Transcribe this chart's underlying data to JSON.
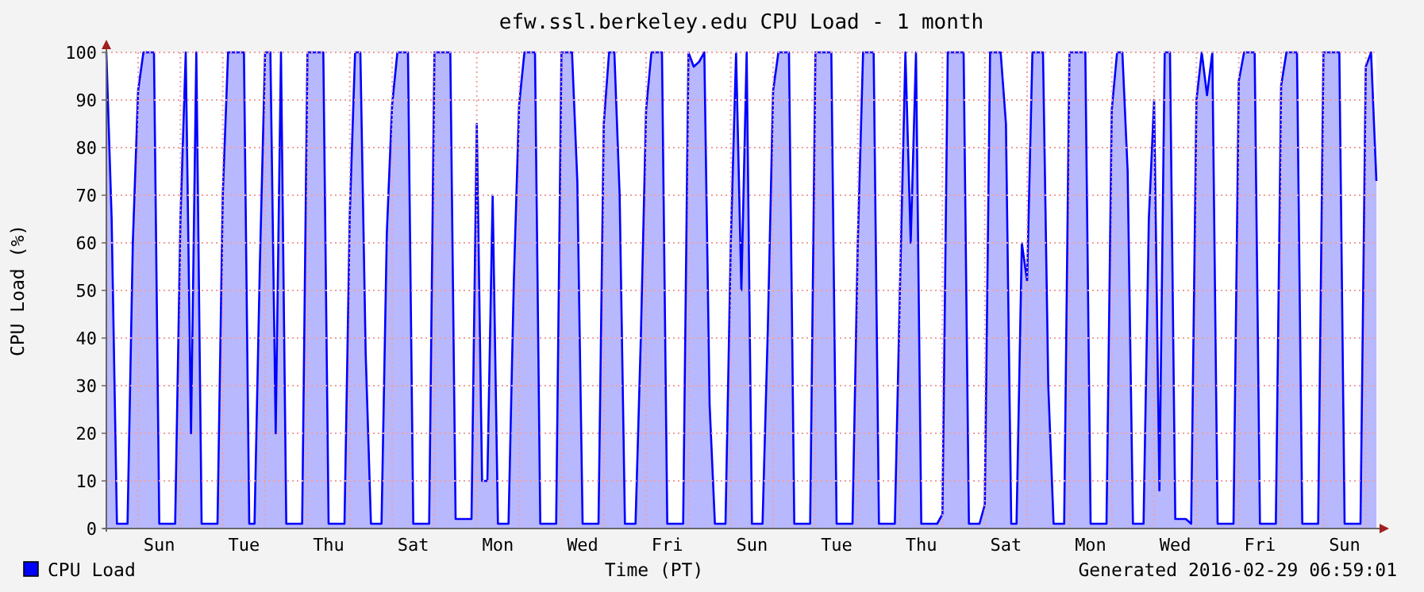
{
  "chart_data": {
    "type": "area",
    "title": "efw.ssl.berkeley.edu CPU Load - 1 month",
    "xlabel": "Time (PT)",
    "ylabel": "CPU Load (%)",
    "annotations": [
      "Generated 2016-02-29 06:59:01"
    ],
    "legend": "bottom left",
    "grid": true,
    "categories": [
      null,
      null,
      null,
      null,
      null,
      null,
      null,
      null,
      null,
      null,
      "Sun",
      null,
      null,
      null,
      null,
      null,
      null,
      null,
      null,
      null,
      null,
      null,
      null,
      null,
      null,
      null,
      "Tue",
      null,
      null,
      null,
      null,
      null,
      null,
      null,
      null,
      null,
      null,
      null,
      null,
      null,
      null,
      null,
      "Thu",
      null,
      null,
      null,
      null,
      null,
      null,
      null,
      null,
      null,
      null,
      null,
      null,
      null,
      null,
      null,
      "Sat",
      null,
      null,
      null,
      null,
      null,
      null,
      null,
      null,
      null,
      null,
      null,
      null,
      null,
      null,
      null,
      "Mon",
      null,
      null,
      null,
      null,
      null,
      null,
      null,
      null,
      null,
      null,
      null,
      null,
      null,
      null,
      null,
      "Wed",
      null,
      null,
      null,
      null,
      null,
      null,
      null,
      null,
      null,
      null,
      null,
      null,
      null,
      null,
      null,
      "Fri",
      null,
      null,
      null,
      null,
      null,
      null,
      null,
      null,
      null,
      null,
      null,
      null,
      null,
      null,
      null,
      "Sun",
      null,
      null,
      null,
      null,
      null,
      null,
      null,
      null,
      null,
      null,
      null,
      null,
      null,
      null,
      null,
      "Tue",
      null,
      null,
      null,
      null,
      null,
      null,
      null,
      null,
      null,
      null,
      null,
      null,
      null,
      null,
      null,
      "Thu",
      null,
      null,
      null,
      null,
      null,
      null,
      null,
      null,
      null,
      null,
      null,
      null,
      null,
      null,
      null,
      "Sat",
      null,
      null,
      null,
      null,
      null,
      null,
      null,
      null,
      null,
      null,
      null,
      null,
      null,
      null,
      null,
      "Mon",
      null,
      null,
      null,
      null,
      null,
      null,
      null,
      null,
      null,
      null,
      null,
      null,
      null,
      null,
      null,
      "Wed",
      null,
      null,
      null,
      null,
      null,
      null,
      null,
      null,
      null,
      null,
      null,
      null,
      null,
      null,
      null,
      "Fri",
      null,
      null,
      null,
      null,
      null,
      null,
      null,
      null,
      null,
      null,
      null,
      null,
      null,
      null,
      null,
      "Sun",
      null,
      null,
      null,
      null,
      null,
      null
    ],
    "ylim": [
      0,
      100
    ],
    "yticks": [
      0,
      10,
      20,
      30,
      40,
      50,
      60,
      70,
      80,
      90,
      100
    ],
    "series": [
      {
        "name": "CPU Load",
        "color": "#0000ff",
        "values": [
          100,
          65,
          1,
          1,
          1,
          60,
          92,
          100,
          100,
          100,
          1,
          1,
          1,
          1,
          65,
          100,
          20,
          100,
          1,
          1,
          1,
          1,
          70,
          100,
          100,
          100,
          100,
          1,
          1,
          55,
          100,
          100,
          20,
          100,
          1,
          1,
          1,
          1,
          100,
          100,
          100,
          100,
          1,
          1,
          1,
          1,
          66,
          100,
          100,
          37,
          1,
          1,
          1,
          62,
          89,
          100,
          100,
          100,
          1,
          1,
          1,
          1,
          100,
          100,
          100,
          100,
          2,
          2,
          2,
          2,
          85,
          10,
          10,
          70,
          1,
          1,
          1,
          52,
          89,
          100,
          100,
          100,
          1,
          1,
          1,
          1,
          100,
          100,
          100,
          73,
          1,
          1,
          1,
          1,
          85,
          100,
          100,
          70,
          1,
          1,
          1,
          40,
          88,
          100,
          100,
          100,
          1,
          1,
          1,
          1,
          100,
          97,
          98,
          100,
          26,
          1,
          1,
          1,
          60,
          100,
          50,
          100,
          1,
          1,
          1,
          42,
          92,
          100,
          100,
          100,
          1,
          1,
          1,
          1,
          100,
          100,
          100,
          100,
          1,
          1,
          1,
          1,
          60,
          100,
          100,
          100,
          1,
          1,
          1,
          1,
          52,
          100,
          60,
          100,
          1,
          1,
          1,
          1,
          3,
          100,
          100,
          100,
          100,
          1,
          1,
          1,
          5,
          100,
          100,
          100,
          85,
          1,
          1,
          60,
          52,
          100,
          100,
          100,
          30,
          1,
          1,
          1,
          100,
          100,
          100,
          100,
          1,
          1,
          1,
          1,
          88,
          100,
          100,
          75,
          1,
          1,
          1,
          65,
          90,
          8,
          100,
          100,
          2,
          2,
          2,
          1,
          90,
          100,
          91,
          100,
          1,
          1,
          1,
          1,
          94,
          100,
          100,
          100,
          1,
          1,
          1,
          1,
          93,
          100,
          100,
          100,
          1,
          1,
          1,
          1,
          100,
          100,
          100,
          100,
          1,
          1,
          1,
          1,
          97,
          100,
          73
        ]
      }
    ]
  }
}
